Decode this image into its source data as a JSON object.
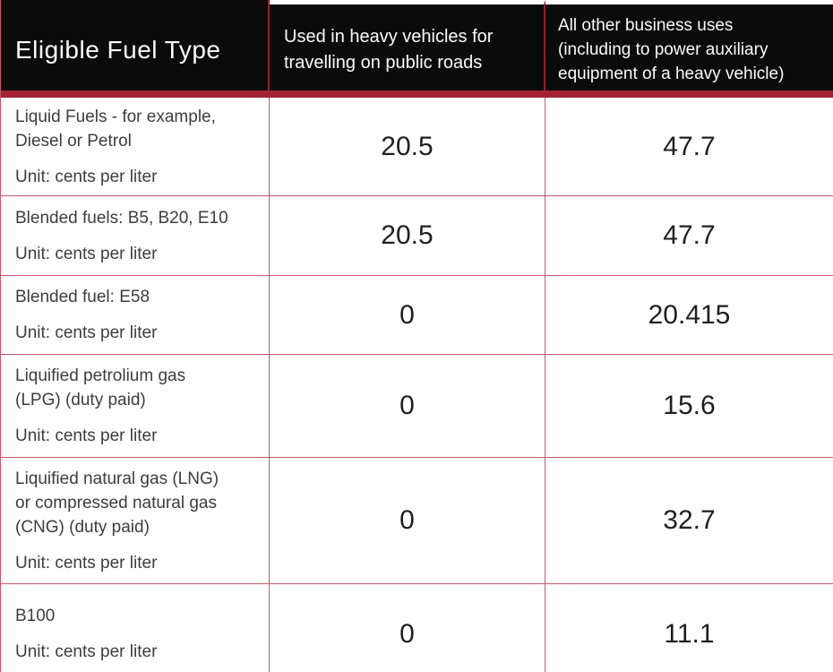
{
  "colors": {
    "header_bg": "#0b0b0b",
    "header_text": "#fafafa",
    "accent_stripe": "#a32036",
    "header_divider": "#8e1c33",
    "grid_line": "#c2596b",
    "body_text": "#3d3d3d",
    "value_text": "#1f1f1f",
    "background": "#ffffff"
  },
  "table": {
    "header": {
      "fuel_type": "Eligible Fuel Type",
      "heavy_vehicles": "Used in heavy vehicles for\ntravelling on public roads",
      "other_business": "All other business uses\n(including to power auxiliary\nequipment of a heavy vehicle)"
    },
    "rows": [
      {
        "fuel": "Liquid Fuels -  for example,\nDiesel or Petrol",
        "unit": "Unit: cents per liter",
        "heavy_vehicle_rate": "20.5",
        "other_business_rate": "47.7"
      },
      {
        "fuel": "Blended fuels: B5, B20, E10",
        "unit": "Unit: cents per liter",
        "heavy_vehicle_rate": "20.5",
        "other_business_rate": "47.7"
      },
      {
        "fuel": "Blended fuel: E58",
        "unit": "Unit: cents per liter",
        "heavy_vehicle_rate": "0",
        "other_business_rate": "20.415"
      },
      {
        "fuel": "Liquified petrolium gas\n(LPG) (duty paid)",
        "unit": "Unit: cents per liter",
        "heavy_vehicle_rate": "0",
        "other_business_rate": "15.6"
      },
      {
        "fuel": "Liquified natural gas (LNG)\nor compressed natural gas\n(CNG) (duty paid)",
        "unit": "Unit: cents per liter",
        "heavy_vehicle_rate": "0",
        "other_business_rate": "32.7"
      },
      {
        "fuel": "B100",
        "unit": "Unit: cents per liter",
        "heavy_vehicle_rate": "0",
        "other_business_rate": "11.1"
      }
    ]
  }
}
